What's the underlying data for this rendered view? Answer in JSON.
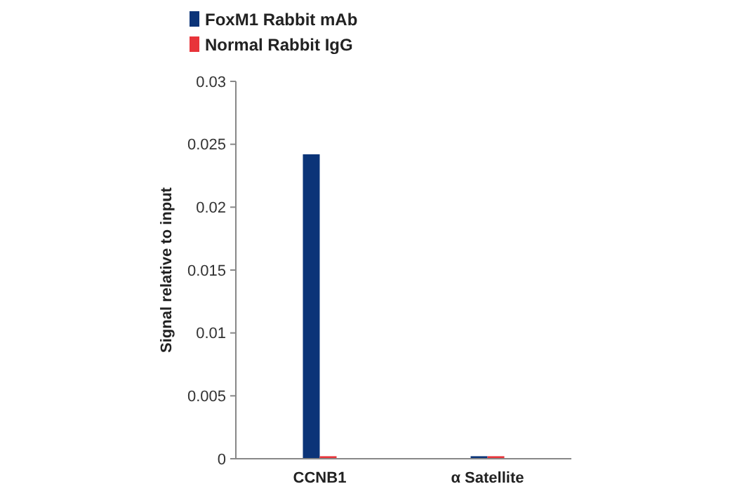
{
  "chart_data": {
    "type": "bar",
    "ylabel": "Signal relative to input",
    "categories": [
      "CCNB1",
      "α Satellite"
    ],
    "series": [
      {
        "name": "FoxM1 Rabbit mAb",
        "color": "#0b3478",
        "values": [
          0.0242,
          0.0002
        ]
      },
      {
        "name": "Normal Rabbit IgG",
        "color": "#e8343a",
        "values": [
          0.0002,
          0.0002
        ]
      }
    ],
    "ylim": [
      0,
      0.03
    ],
    "yticks": [
      0,
      0.005,
      0.01,
      0.015,
      0.02,
      0.025,
      0.03
    ],
    "grid": false,
    "legend": "top left"
  }
}
